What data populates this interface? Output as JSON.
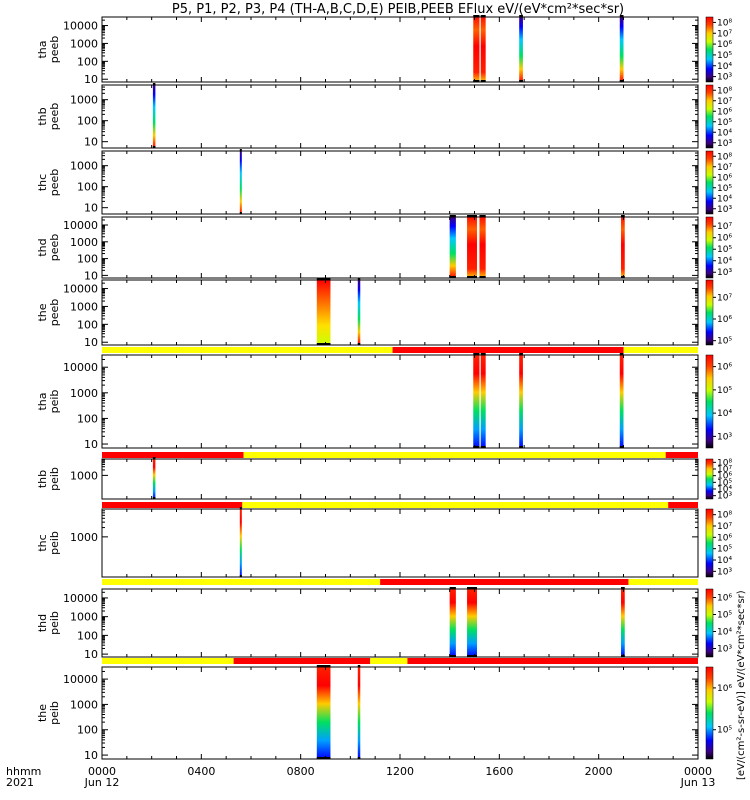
{
  "chart_data": {
    "type": "heatmap",
    "title": "P5, P1, P2, P3, P4 (TH-A,B,C,D,E) PEIB,PEEB EFlux eV/(eV*cm²*sec*sr)",
    "cbar_label": "[eV/(cm²-s-sr-eV)] eV/(eV*cm²*sec*sr)",
    "x": {
      "label_line1": "hhmm",
      "label_line2": "2021",
      "ticks": [
        "0000",
        "0400",
        "0800",
        "1200",
        "1600",
        "2000",
        "0000"
      ],
      "tick_dates": [
        "Jun 12",
        "",
        "",
        "",
        "",
        "",
        "Jun 13"
      ],
      "range_hours": [
        0,
        24
      ],
      "minor_ticks_per_major": 4
    },
    "panels": [
      {
        "probe": "tha",
        "product": "peeb",
        "ylabel": [
          "tha",
          "peeb"
        ],
        "yticks": [
          "10000",
          "1000",
          "100",
          "10"
        ],
        "ylog": true,
        "yrange": [
          7,
          30000
        ],
        "mode_bar": null,
        "bursts": [
          {
            "t0": 14.95,
            "t1": 15.2,
            "style": "hot"
          },
          {
            "t0": 15.25,
            "t1": 15.45,
            "style": "hot"
          },
          {
            "t0": 16.8,
            "t1": 16.95,
            "style": "mixed"
          },
          {
            "t0": 20.85,
            "t1": 21.0,
            "style": "mixed"
          }
        ],
        "cbar": {
          "ticks": [
            "10⁸",
            "10⁷",
            "10⁶",
            "10⁵",
            "10⁴",
            "10³"
          ],
          "exp_range": [
            2.5,
            8.5
          ]
        }
      },
      {
        "probe": "thb",
        "product": "peeb",
        "ylabel": [
          "thb",
          "peeb"
        ],
        "yticks": [
          "1000",
          "100",
          "10"
        ],
        "ylog": true,
        "yrange": [
          5,
          5000
        ],
        "mode_bar": null,
        "bursts": [
          {
            "t0": 2.05,
            "t1": 2.15,
            "style": "mixed"
          }
        ],
        "cbar": {
          "ticks": [
            "10⁸",
            "10⁷",
            "10⁶",
            "10⁵",
            "10⁴",
            "10³"
          ],
          "exp_range": [
            2.5,
            8.5
          ]
        }
      },
      {
        "probe": "thc",
        "product": "peeb",
        "ylabel": [
          "thc",
          "peeb"
        ],
        "yticks": [
          "1000",
          "100",
          "10"
        ],
        "ylog": true,
        "yrange": [
          5,
          5000
        ],
        "mode_bar": null,
        "bursts": [
          {
            "t0": 5.55,
            "t1": 5.62,
            "style": "mixed"
          }
        ],
        "cbar": {
          "ticks": [
            "10⁸",
            "10⁷",
            "10⁶",
            "10⁵",
            "10⁴",
            "10³"
          ],
          "exp_range": [
            2.5,
            8.5
          ]
        }
      },
      {
        "probe": "thd",
        "product": "peeb",
        "ylabel": [
          "thd",
          "peeb"
        ],
        "yticks": [
          "10000",
          "1000",
          "100",
          "10"
        ],
        "ylog": true,
        "yrange": [
          7,
          30000
        ],
        "mode_bar": null,
        "bursts": [
          {
            "t0": 14.0,
            "t1": 14.25,
            "style": "mixed"
          },
          {
            "t0": 14.7,
            "t1": 15.1,
            "style": "hot"
          },
          {
            "t0": 15.2,
            "t1": 15.45,
            "style": "hot"
          },
          {
            "t0": 20.9,
            "t1": 21.05,
            "style": "hot"
          }
        ],
        "cbar": {
          "ticks": [
            "10⁷",
            "10⁶",
            "10⁵",
            "10⁴",
            "10³"
          ],
          "exp_range": [
            2.5,
            7.8
          ]
        }
      },
      {
        "probe": "the",
        "product": "peeb",
        "ylabel": [
          "the",
          "peeb"
        ],
        "yticks": [
          "10000",
          "1000",
          "100",
          "10"
        ],
        "ylog": true,
        "yrange": [
          7,
          30000
        ],
        "mode_bar": null,
        "bursts": [
          {
            "t0": 8.65,
            "t1": 9.2,
            "style": "warm"
          },
          {
            "t0": 10.3,
            "t1": 10.4,
            "style": "mixed"
          }
        ],
        "cbar": {
          "ticks": [
            "10⁷",
            "10⁶",
            "10⁵"
          ],
          "exp_range": [
            4.8,
            7.8
          ]
        }
      },
      {
        "probe": "tha",
        "product": "peib",
        "ylabel": [
          "tha",
          "peib"
        ],
        "yticks": [
          "10000",
          "1000",
          "100",
          "10"
        ],
        "ylog": true,
        "yrange": [
          7,
          30000
        ],
        "mode_bar": [
          {
            "t0": 0,
            "t1": 11.7,
            "color": "#ffff00"
          },
          {
            "t0": 11.7,
            "t1": 21.0,
            "color": "#ff0000"
          },
          {
            "t0": 21.0,
            "t1": 24,
            "color": "#ffff00"
          }
        ],
        "bursts": [
          {
            "t0": 14.95,
            "t1": 15.2,
            "style": "ion"
          },
          {
            "t0": 15.25,
            "t1": 15.45,
            "style": "ion"
          },
          {
            "t0": 16.8,
            "t1": 16.95,
            "style": "ion"
          },
          {
            "t0": 20.85,
            "t1": 21.0,
            "style": "ion"
          }
        ],
        "cbar": {
          "ticks": [
            "10⁶",
            "10⁵",
            "10⁴",
            "10³"
          ],
          "exp_range": [
            2.5,
            6.5
          ]
        }
      },
      {
        "probe": "thb",
        "product": "peib",
        "ylabel": [
          "thb",
          "peib"
        ],
        "yticks": [
          "1000"
        ],
        "ylog": true,
        "yrange": [
          50,
          8000
        ],
        "mode_bar": [
          {
            "t0": 0,
            "t1": 5.7,
            "color": "#ff0000"
          },
          {
            "t0": 5.7,
            "t1": 22.7,
            "color": "#ffff00"
          },
          {
            "t0": 22.7,
            "t1": 24,
            "color": "#ff0000"
          }
        ],
        "bursts": [
          {
            "t0": 2.05,
            "t1": 2.15,
            "style": "ion"
          }
        ],
        "cbar": {
          "ticks": [
            "10⁸",
            "10⁷",
            "10⁶",
            "10⁵",
            "10⁴",
            "10³"
          ],
          "exp_range": [
            2.5,
            8.5
          ]
        }
      },
      {
        "probe": "thc",
        "product": "peib",
        "ylabel": [
          "thc",
          "peib"
        ],
        "yticks": [
          "1000"
        ],
        "ylog": true,
        "yrange": [
          50,
          8000
        ],
        "mode_bar": [
          {
            "t0": 0,
            "t1": 5.65,
            "color": "#ff0000"
          },
          {
            "t0": 5.65,
            "t1": 22.8,
            "color": "#ffff00"
          },
          {
            "t0": 22.8,
            "t1": 24,
            "color": "#ff0000"
          }
        ],
        "bursts": [
          {
            "t0": 5.55,
            "t1": 5.62,
            "style": "ion"
          }
        ],
        "cbar": {
          "ticks": [
            "10⁸",
            "10⁷",
            "10⁶",
            "10⁵",
            "10⁴",
            "10³"
          ],
          "exp_range": [
            2.5,
            8.5
          ]
        }
      },
      {
        "probe": "thd",
        "product": "peib",
        "ylabel": [
          "thd",
          "peib"
        ],
        "yticks": [
          "10000",
          "1000",
          "100",
          "10"
        ],
        "ylog": true,
        "yrange": [
          7,
          30000
        ],
        "mode_bar": [
          {
            "t0": 0,
            "t1": 11.2,
            "color": "#ffff00"
          },
          {
            "t0": 11.2,
            "t1": 21.2,
            "color": "#ff0000"
          },
          {
            "t0": 21.2,
            "t1": 24,
            "color": "#ffff00"
          }
        ],
        "bursts": [
          {
            "t0": 14.0,
            "t1": 14.25,
            "style": "ion"
          },
          {
            "t0": 14.7,
            "t1": 15.1,
            "style": "ion"
          },
          {
            "t0": 20.9,
            "t1": 21.05,
            "style": "ion"
          }
        ],
        "cbar": {
          "ticks": [
            "10⁶",
            "10⁵",
            "10⁴",
            "10³"
          ],
          "exp_range": [
            2.5,
            6.5
          ]
        }
      },
      {
        "probe": "the",
        "product": "peib",
        "ylabel": [
          "the",
          "peib"
        ],
        "yticks": [
          "10000",
          "1000",
          "100",
          "10"
        ],
        "ylog": true,
        "yrange": [
          7,
          30000
        ],
        "mode_bar": [
          {
            "t0": 0,
            "t1": 5.3,
            "color": "#ffff00"
          },
          {
            "t0": 5.3,
            "t1": 10.8,
            "color": "#ff0000"
          },
          {
            "t0": 10.8,
            "t1": 12.3,
            "color": "#ffff00"
          },
          {
            "t0": 12.3,
            "t1": 24,
            "color": "#ff0000"
          }
        ],
        "bursts": [
          {
            "t0": 8.65,
            "t1": 9.2,
            "style": "ion"
          },
          {
            "t0": 10.3,
            "t1": 10.4,
            "style": "ion"
          }
        ],
        "cbar": {
          "ticks": [
            "10⁶",
            "10⁵"
          ],
          "exp_range": [
            4.3,
            6.5
          ]
        }
      }
    ]
  }
}
